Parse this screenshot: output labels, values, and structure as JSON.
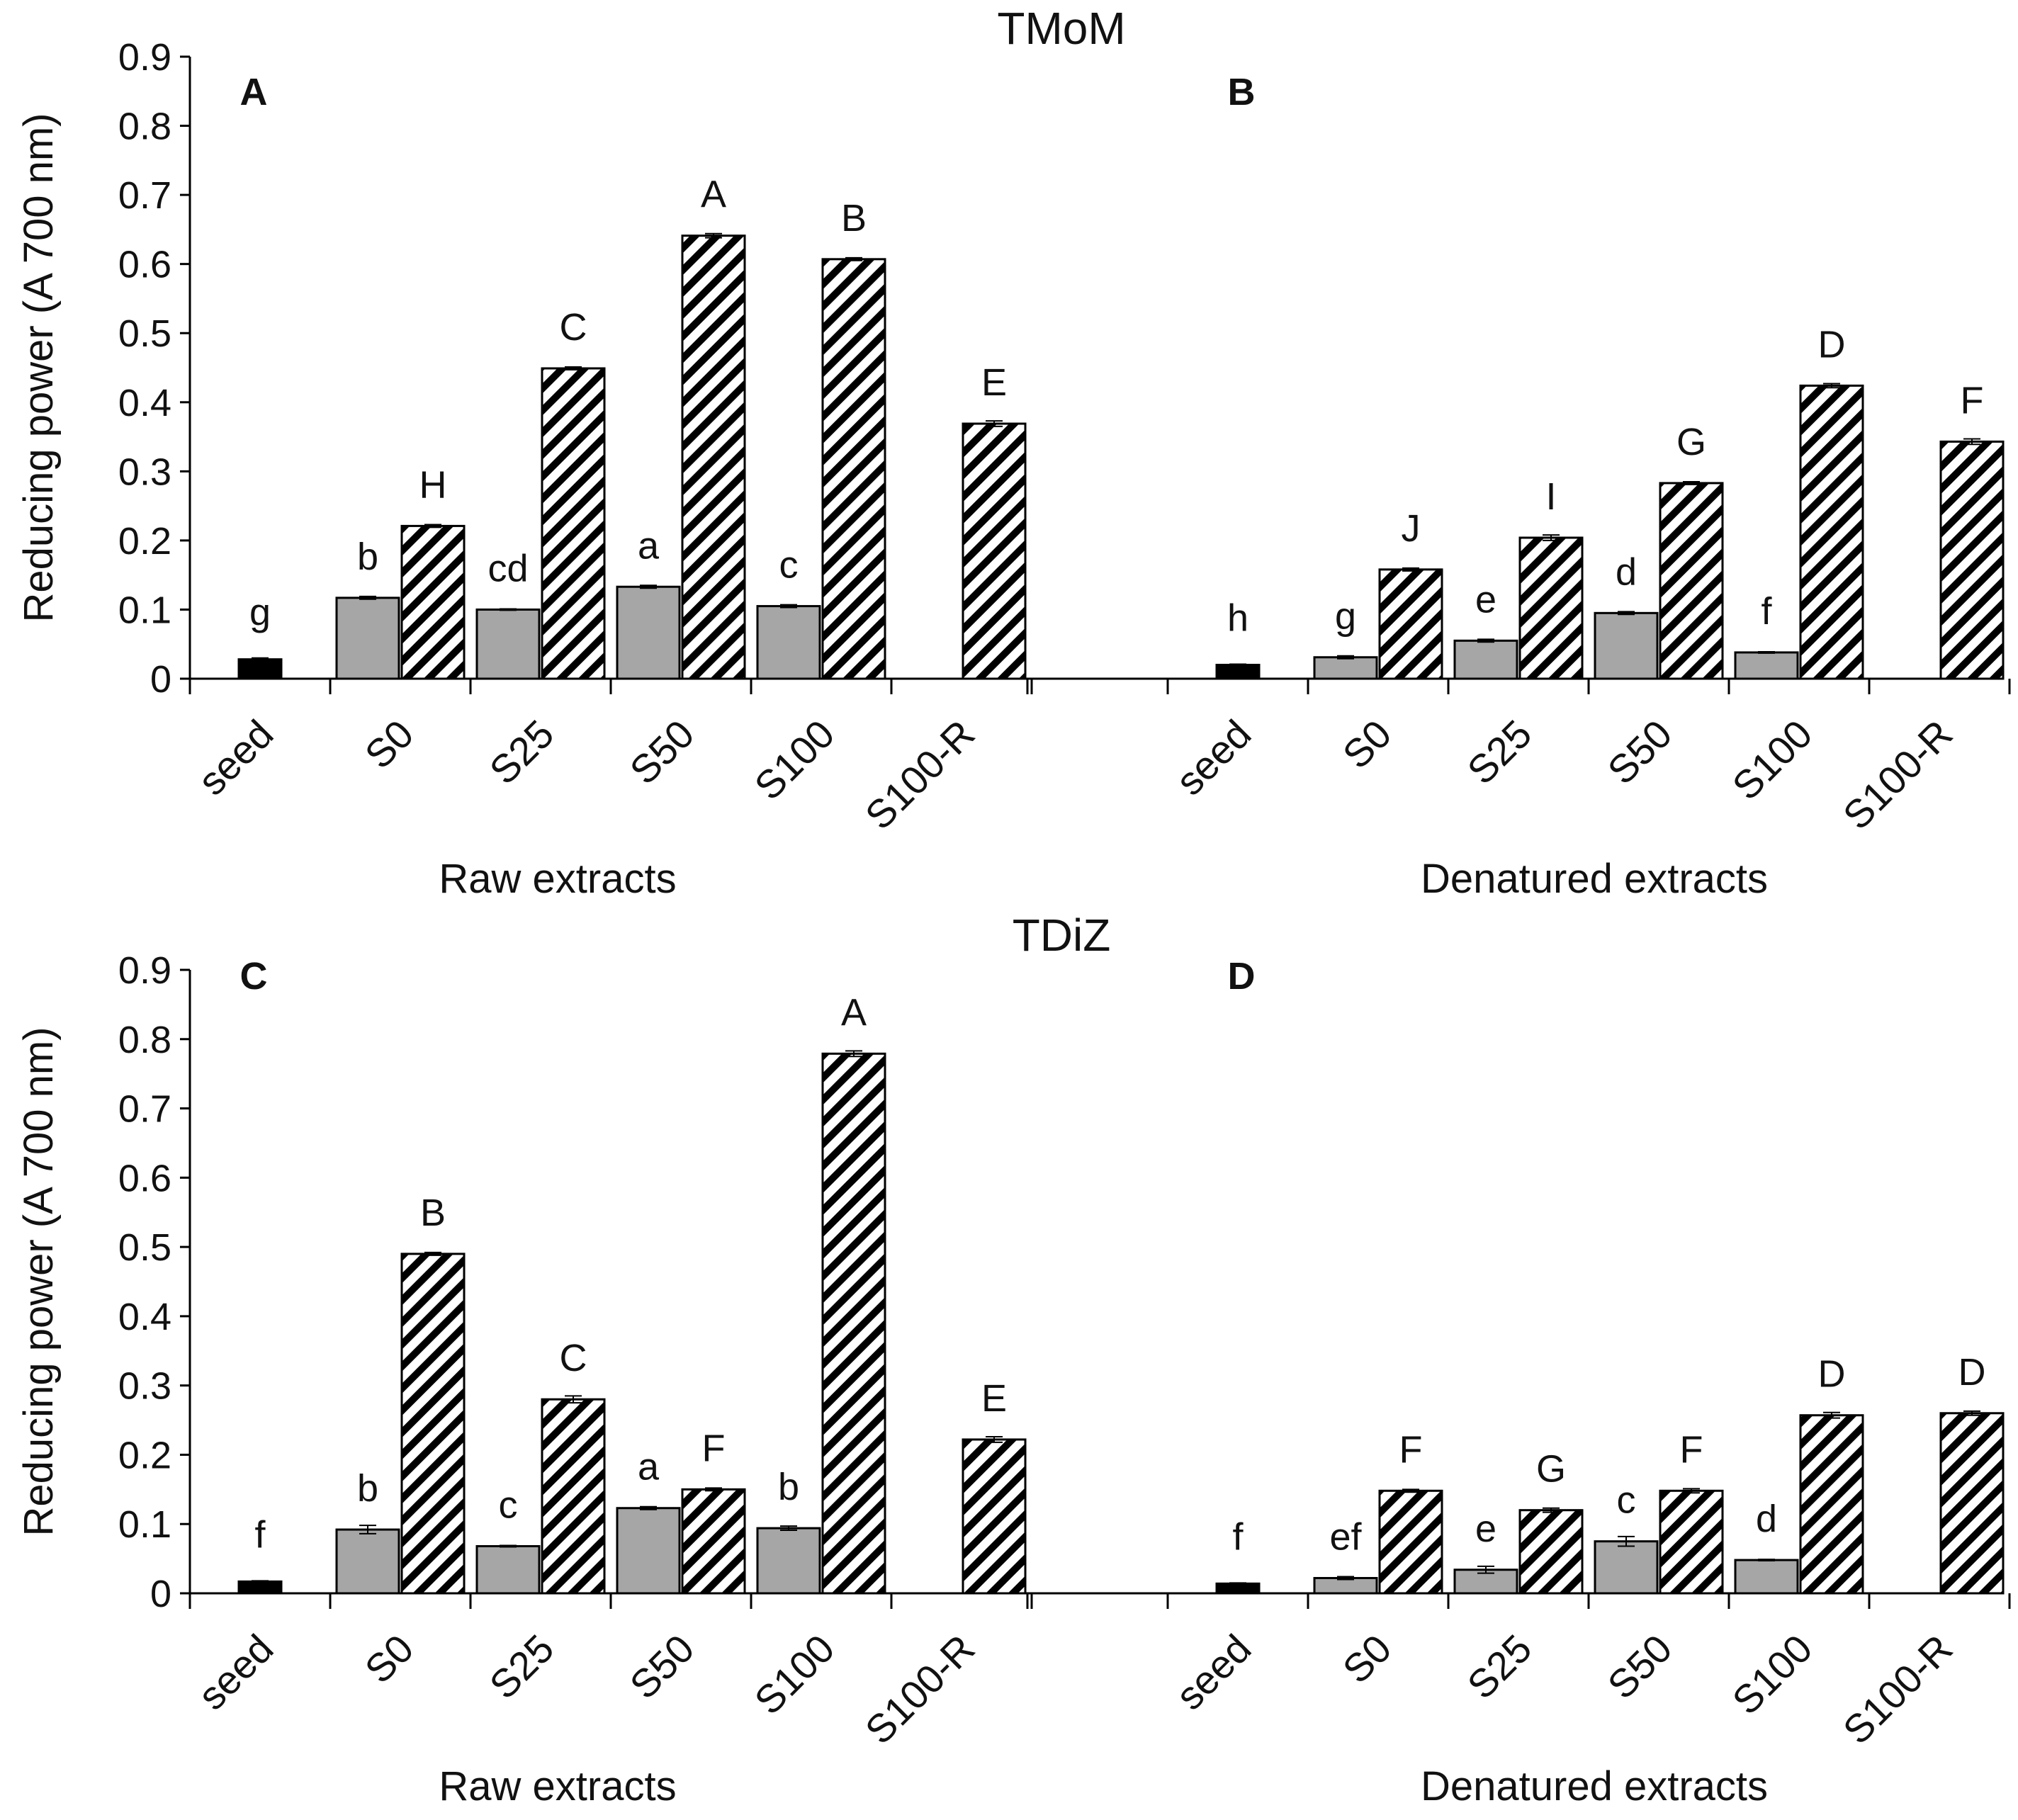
{
  "chart_data": [
    {
      "type": "bar",
      "title": "TMoM",
      "ylabel": "Reducing power (A 700 nm)",
      "ylim": [
        0,
        0.9
      ],
      "yticks": [
        "0",
        "0.1",
        "0.2",
        "0.3",
        "0.4",
        "0.5",
        "0.6",
        "0.7",
        "0.8",
        "0.9"
      ],
      "panels": [
        {
          "letter": "A",
          "group_label": "Raw extracts",
          "categories": [
            "seed",
            "S0",
            "S25",
            "S50",
            "S100",
            "S100-R"
          ],
          "bars": [
            {
              "category": "seed",
              "series": "seed",
              "value": 0.028,
              "error": 0.002,
              "label": "g"
            },
            {
              "category": "S0",
              "series": "grey",
              "value": 0.117,
              "error": 0.002,
              "label": "b"
            },
            {
              "category": "S0",
              "series": "hatched",
              "value": 0.221,
              "error": 0.002,
              "label": "H"
            },
            {
              "category": "S25",
              "series": "grey",
              "value": 0.1,
              "error": 0.001,
              "label": "cd"
            },
            {
              "category": "S25",
              "series": "hatched",
              "value": 0.449,
              "error": 0.002,
              "label": "C"
            },
            {
              "category": "S50",
              "series": "grey",
              "value": 0.133,
              "error": 0.002,
              "label": "a"
            },
            {
              "category": "S50",
              "series": "hatched",
              "value": 0.641,
              "error": 0.003,
              "label": "A"
            },
            {
              "category": "S100",
              "series": "grey",
              "value": 0.105,
              "error": 0.002,
              "label": "c"
            },
            {
              "category": "S100",
              "series": "hatched",
              "value": 0.607,
              "error": 0.002,
              "label": "B"
            },
            {
              "category": "S100-R",
              "series": "hatched",
              "value": 0.369,
              "error": 0.004,
              "label": "E"
            }
          ]
        },
        {
          "letter": "B",
          "group_label": "Denatured extracts",
          "categories": [
            "seed",
            "S0",
            "S25",
            "S50",
            "S100",
            "S100-R"
          ],
          "bars": [
            {
              "category": "seed",
              "series": "seed",
              "value": 0.02,
              "error": 0.001,
              "label": "h"
            },
            {
              "category": "S0",
              "series": "grey",
              "value": 0.031,
              "error": 0.002,
              "label": "g"
            },
            {
              "category": "S0",
              "series": "hatched",
              "value": 0.158,
              "error": 0.002,
              "label": "J"
            },
            {
              "category": "S25",
              "series": "grey",
              "value": 0.055,
              "error": 0.002,
              "label": "e"
            },
            {
              "category": "S25",
              "series": "hatched",
              "value": 0.204,
              "error": 0.004,
              "label": "I"
            },
            {
              "category": "S50",
              "series": "grey",
              "value": 0.095,
              "error": 0.002,
              "label": "d"
            },
            {
              "category": "S50",
              "series": "hatched",
              "value": 0.283,
              "error": 0.002,
              "label": "G"
            },
            {
              "category": "S100",
              "series": "grey",
              "value": 0.038,
              "error": 0.001,
              "label": "f"
            },
            {
              "category": "S100",
              "series": "hatched",
              "value": 0.424,
              "error": 0.003,
              "label": "D"
            },
            {
              "category": "S100-R",
              "series": "hatched",
              "value": 0.343,
              "error": 0.004,
              "label": "F"
            }
          ]
        }
      ]
    },
    {
      "type": "bar",
      "title": "TDiZ",
      "ylabel": "Reducing power (A 700 nm)",
      "ylim": [
        0,
        0.9
      ],
      "yticks": [
        "0",
        "0.1",
        "0.2",
        "0.3",
        "0.4",
        "0.5",
        "0.6",
        "0.7",
        "0.8",
        "0.9"
      ],
      "panels": [
        {
          "letter": "C",
          "group_label": "Raw extracts",
          "categories": [
            "seed",
            "S0",
            "S25",
            "S50",
            "S100",
            "S100-R"
          ],
          "bars": [
            {
              "category": "seed",
              "series": "seed",
              "value": 0.017,
              "error": 0.001,
              "label": "f"
            },
            {
              "category": "S0",
              "series": "grey",
              "value": 0.092,
              "error": 0.006,
              "label": "b"
            },
            {
              "category": "S0",
              "series": "hatched",
              "value": 0.49,
              "error": 0.002,
              "label": "B"
            },
            {
              "category": "S25",
              "series": "grey",
              "value": 0.068,
              "error": 0.001,
              "label": "c"
            },
            {
              "category": "S25",
              "series": "hatched",
              "value": 0.28,
              "error": 0.005,
              "label": "C"
            },
            {
              "category": "S50",
              "series": "grey",
              "value": 0.123,
              "error": 0.002,
              "label": "a"
            },
            {
              "category": "S50",
              "series": "hatched",
              "value": 0.15,
              "error": 0.002,
              "label": "F"
            },
            {
              "category": "S100",
              "series": "grey",
              "value": 0.094,
              "error": 0.003,
              "label": "b"
            },
            {
              "category": "S100",
              "series": "hatched",
              "value": 0.779,
              "error": 0.004,
              "label": "A"
            },
            {
              "category": "S100-R",
              "series": "hatched",
              "value": 0.222,
              "error": 0.004,
              "label": "E"
            }
          ]
        },
        {
          "letter": "D",
          "group_label": "Denatured extracts",
          "categories": [
            "seed",
            "S0",
            "S25",
            "S50",
            "S100",
            "S100-R"
          ],
          "bars": [
            {
              "category": "seed",
              "series": "seed",
              "value": 0.014,
              "error": 0.001,
              "label": "f"
            },
            {
              "category": "S0",
              "series": "grey",
              "value": 0.022,
              "error": 0.002,
              "label": "ef"
            },
            {
              "category": "S0",
              "series": "hatched",
              "value": 0.148,
              "error": 0.002,
              "label": "F"
            },
            {
              "category": "S25",
              "series": "grey",
              "value": 0.034,
              "error": 0.005,
              "label": "e"
            },
            {
              "category": "S25",
              "series": "hatched",
              "value": 0.12,
              "error": 0.003,
              "label": "G"
            },
            {
              "category": "S50",
              "series": "grey",
              "value": 0.075,
              "error": 0.007,
              "label": "c"
            },
            {
              "category": "S50",
              "series": "hatched",
              "value": 0.148,
              "error": 0.003,
              "label": "F"
            },
            {
              "category": "S100",
              "series": "grey",
              "value": 0.048,
              "error": 0.001,
              "label": "d"
            },
            {
              "category": "S100",
              "series": "hatched",
              "value": 0.257,
              "error": 0.004,
              "label": "D"
            },
            {
              "category": "S100-R",
              "series": "hatched",
              "value": 0.26,
              "error": 0.003,
              "label": "D"
            }
          ]
        }
      ]
    }
  ],
  "colors": {
    "seed": "#000000",
    "grey": "#a6a6a6",
    "hatched_fill": "#ffffff",
    "hatch_line": "#000000",
    "axis": "#000000"
  }
}
